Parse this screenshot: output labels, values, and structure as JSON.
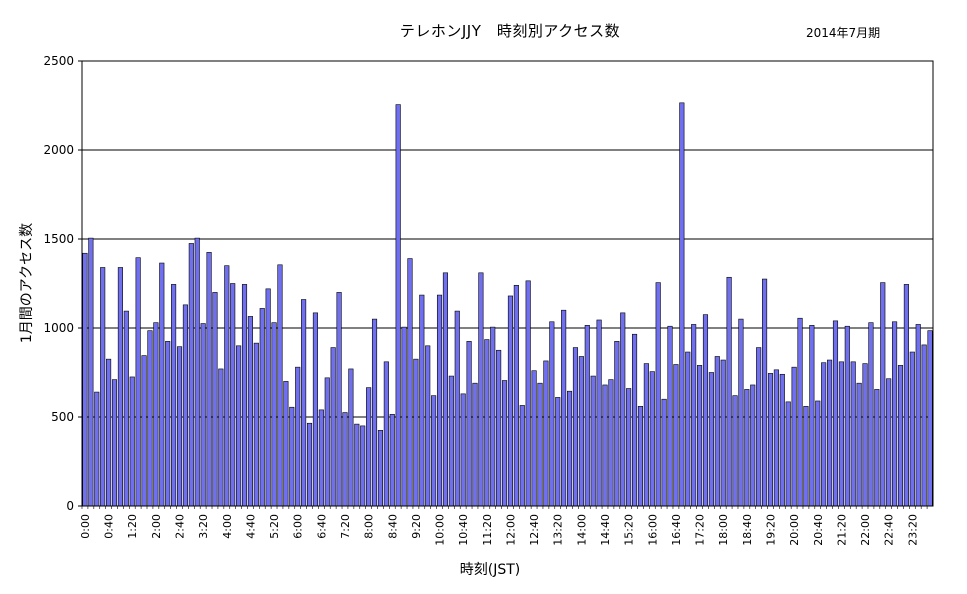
{
  "chart_data": {
    "type": "bar",
    "title": "テレホンJJY　時刻別アクセス数",
    "subtitle": "2014年7月期",
    "xlabel": "時刻(JST)",
    "ylabel": "1月間のアクセス数",
    "ylim": [
      0,
      2500
    ],
    "yticks": [
      "0",
      "500",
      "1000",
      "1500",
      "2000",
      "2500"
    ],
    "grid": true,
    "legend": "none",
    "bar_color": "#7070ee",
    "x_tick_labels": [
      "0:00",
      "0:40",
      "1:20",
      "2:00",
      "2:40",
      "3:20",
      "4:00",
      "4:40",
      "5:20",
      "6:00",
      "6:40",
      "7:20",
      "8:00",
      "8:40",
      "9:20",
      "10:00",
      "10:40",
      "11:20",
      "12:00",
      "12:40",
      "13:20",
      "14:00",
      "14:40",
      "15:20",
      "16:00",
      "16:40",
      "17:20",
      "18:00",
      "18:40",
      "19:20",
      "20:00",
      "20:40",
      "21:20",
      "22:00",
      "22:40",
      "23:20"
    ],
    "categories": [
      "0:00",
      "0:10",
      "0:20",
      "0:30",
      "0:40",
      "0:50",
      "1:00",
      "1:10",
      "1:20",
      "1:30",
      "1:40",
      "1:50",
      "2:00",
      "2:10",
      "2:20",
      "2:30",
      "2:40",
      "2:50",
      "3:00",
      "3:10",
      "3:20",
      "3:30",
      "3:40",
      "3:50",
      "4:00",
      "4:10",
      "4:20",
      "4:30",
      "4:40",
      "4:50",
      "5:00",
      "5:10",
      "5:20",
      "5:30",
      "5:40",
      "5:50",
      "6:00",
      "6:10",
      "6:20",
      "6:30",
      "6:40",
      "6:50",
      "7:00",
      "7:10",
      "7:20",
      "7:30",
      "7:40",
      "7:50",
      "8:00",
      "8:10",
      "8:20",
      "8:30",
      "8:40",
      "8:50",
      "9:00",
      "9:10",
      "9:20",
      "9:30",
      "9:40",
      "9:50",
      "10:00",
      "10:10",
      "10:20",
      "10:30",
      "10:40",
      "10:50",
      "11:00",
      "11:10",
      "11:20",
      "11:30",
      "11:40",
      "11:50",
      "12:00",
      "12:10",
      "12:20",
      "12:30",
      "12:40",
      "12:50",
      "13:00",
      "13:10",
      "13:20",
      "13:30",
      "13:40",
      "13:50",
      "14:00",
      "14:10",
      "14:20",
      "14:30",
      "14:40",
      "14:50",
      "15:00",
      "15:10",
      "15:20",
      "15:30",
      "15:40",
      "15:50",
      "16:00",
      "16:10",
      "16:20",
      "16:30",
      "16:40",
      "16:50",
      "17:00",
      "17:10",
      "17:20",
      "17:30",
      "17:40",
      "17:50",
      "18:00",
      "18:10",
      "18:20",
      "18:30",
      "18:40",
      "18:50",
      "19:00",
      "19:10",
      "19:20",
      "19:30",
      "19:40",
      "19:50",
      "20:00",
      "20:10",
      "20:20",
      "20:30",
      "20:40",
      "20:50",
      "21:00",
      "21:10",
      "21:20",
      "21:30",
      "21:40",
      "21:50",
      "22:00",
      "22:10",
      "22:20",
      "22:30",
      "22:40",
      "22:50",
      "23:00",
      "23:10",
      "23:20",
      "23:30",
      "23:40",
      "23:50"
    ],
    "values": [
      1420,
      1505,
      640,
      1340,
      825,
      710,
      1340,
      1095,
      725,
      1395,
      845,
      985,
      1030,
      1365,
      925,
      1245,
      895,
      1130,
      1475,
      1505,
      1025,
      1425,
      1200,
      770,
      1350,
      1250,
      900,
      1245,
      1065,
      915,
      1110,
      1220,
      1030,
      1355,
      700,
      555,
      780,
      1160,
      465,
      1085,
      540,
      720,
      890,
      1200,
      525,
      770,
      460,
      450,
      665,
      1050,
      425,
      810,
      515,
      2255,
      1005,
      1390,
      825,
      1185,
      900,
      620,
      1185,
      1310,
      730,
      1095,
      630,
      925,
      690,
      1310,
      935,
      1005,
      875,
      705,
      1180,
      1240,
      565,
      1265,
      760,
      690,
      815,
      1035,
      610,
      1100,
      645,
      890,
      840,
      1015,
      730,
      1045,
      680,
      710,
      925,
      1085,
      660,
      965,
      560,
      800,
      755,
      1255,
      600,
      1010,
      795,
      2265,
      865,
      1020,
      790,
      1075,
      750,
      840,
      820,
      1285,
      620,
      1050,
      655,
      680,
      890,
      1275,
      745,
      765,
      740,
      585,
      780,
      1055,
      560,
      1015,
      590,
      805,
      820,
      1040,
      810,
      1010,
      810,
      690,
      800,
      1030,
      655,
      1255,
      715,
      1035,
      790,
      1245,
      865,
      1020,
      905,
      985
    ]
  }
}
